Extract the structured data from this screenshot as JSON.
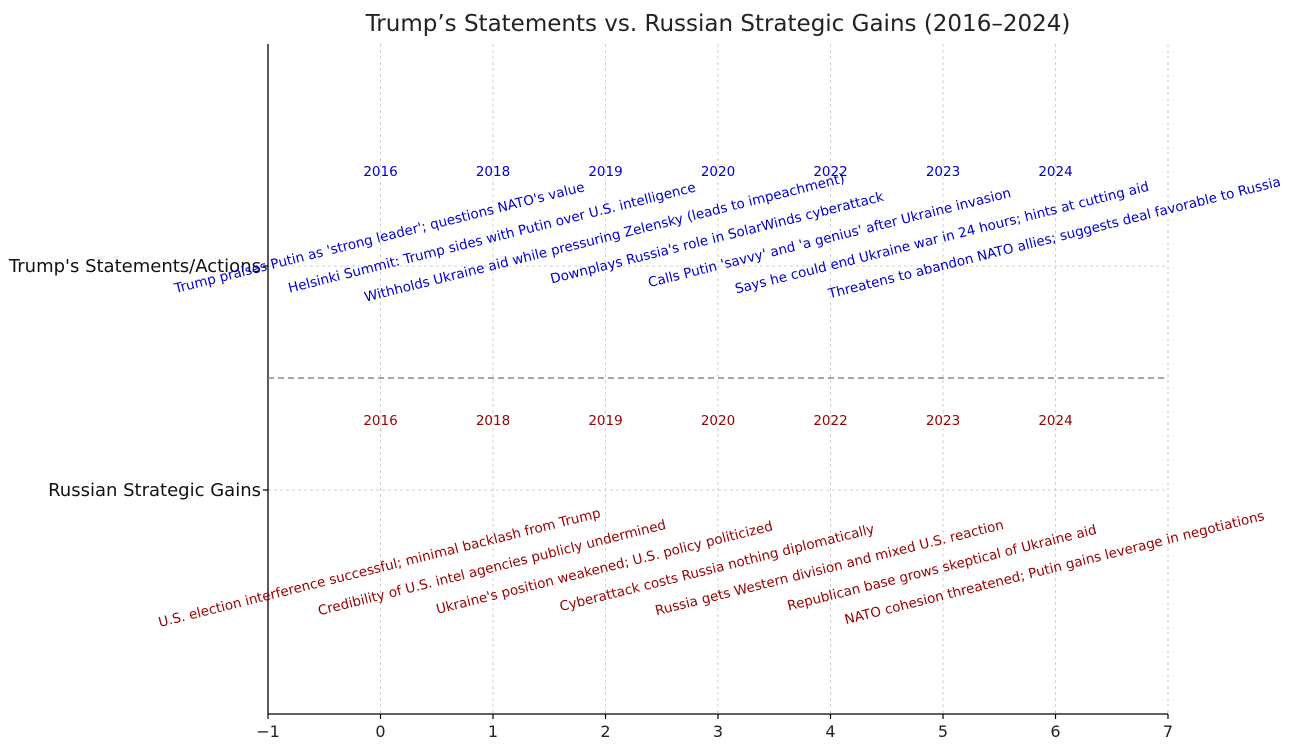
{
  "chart_data": {
    "type": "scatter",
    "title": "Trump’s Statements vs. Russian Strategic Gains (2016–2024)",
    "xlabel": "",
    "ylabel": "",
    "xlim": [
      -1,
      7
    ],
    "xticks": [
      -1,
      0,
      1,
      2,
      3,
      4,
      5,
      6,
      7
    ],
    "xtick_labels": [
      "−1",
      "0",
      "1",
      "2",
      "3",
      "4",
      "5",
      "6",
      "7"
    ],
    "categories": [
      "Trump's Statements/Actions",
      "Russian Strategic Gains"
    ],
    "grid": true,
    "series": [
      {
        "name": "Trump's Statements/Actions",
        "color": "#0000cc",
        "points": [
          {
            "x": 0,
            "year": "2016",
            "text": "Trump praises Putin as 'strong leader'; questions NATO's value"
          },
          {
            "x": 1,
            "year": "2018",
            "text": "Helsinki Summit: Trump sides with Putin over U.S. intelligence"
          },
          {
            "x": 2,
            "year": "2019",
            "text": "Withholds Ukraine aid while pressuring Zelensky (leads to impeachment)"
          },
          {
            "x": 3,
            "year": "2020",
            "text": "Downplays Russia's role in SolarWinds cyberattack"
          },
          {
            "x": 4,
            "year": "2022",
            "text": "Calls Putin 'savvy' and 'a genius' after Ukraine invasion"
          },
          {
            "x": 5,
            "year": "2023",
            "text": "Says he could end Ukraine war in 24 hours; hints at cutting aid"
          },
          {
            "x": 6,
            "year": "2024",
            "text": "Threatens to abandon NATO allies; suggests deal favorable to Russia"
          }
        ]
      },
      {
        "name": "Russian Strategic Gains",
        "color": "#990000",
        "points": [
          {
            "x": 0,
            "year": "2016",
            "text": "U.S. election interference successful; minimal backlash from Trump"
          },
          {
            "x": 1,
            "year": "2018",
            "text": "Credibility of U.S. intel agencies publicly undermined"
          },
          {
            "x": 2,
            "year": "2019",
            "text": "Ukraine's position weakened; U.S. policy politicized"
          },
          {
            "x": 3,
            "year": "2020",
            "text": "Cyberattack costs Russia nothing diplomatically"
          },
          {
            "x": 4,
            "year": "2022",
            "text": "Russia gets Western division and mixed U.S. reaction"
          },
          {
            "x": 5,
            "year": "2023",
            "text": "Republican base grows skeptical of Ukraine aid"
          },
          {
            "x": 6,
            "year": "2024",
            "text": "NATO cohesion threatened; Putin gains leverage in negotiations"
          }
        ]
      }
    ]
  }
}
